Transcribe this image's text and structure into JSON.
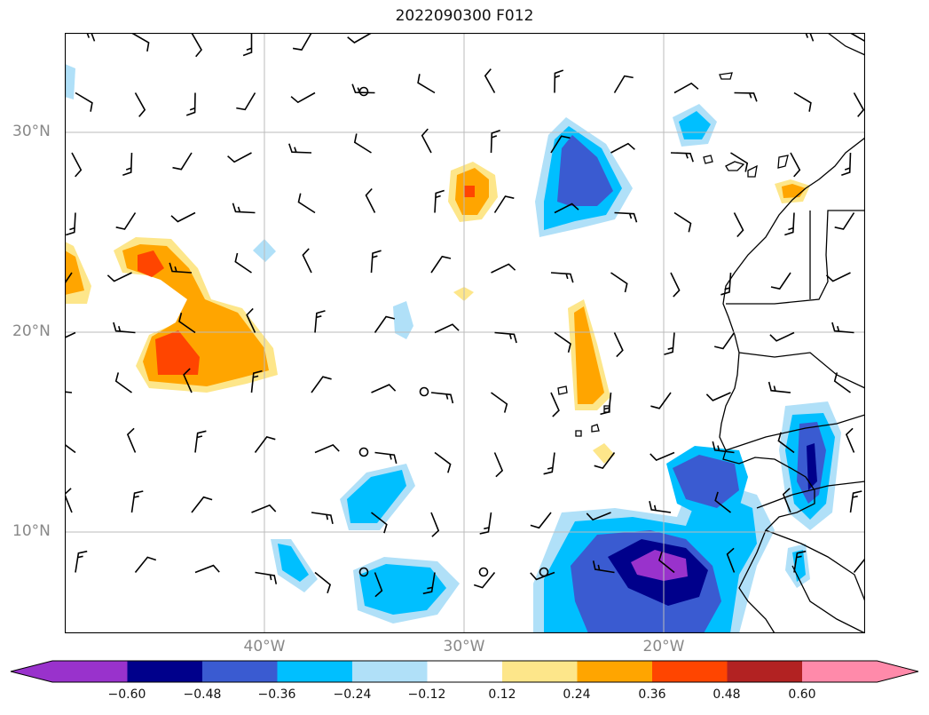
{
  "title": "2022090300 F012",
  "lat_labels": [
    "30°N",
    "20°N",
    "10°N"
  ],
  "lon_labels": [
    "40°W",
    "30°W",
    "20°W"
  ],
  "colorbar": {
    "ticks": [
      "−0.60",
      "−0.48",
      "−0.36",
      "−0.24",
      "−0.12",
      "0.12",
      "0.24",
      "0.36",
      "0.48",
      "0.60"
    ],
    "colors": [
      "#9932cc",
      "#00008b",
      "#3a5bd1",
      "#00bfff",
      "#b0e0f8",
      "#ffffff",
      "#fde68a",
      "#ffa500",
      "#ff4500",
      "#b22222",
      "#ff8aaa"
    ]
  },
  "map": {
    "extent_lon": [
      -50,
      -10
    ],
    "extent_lat": [
      5,
      35
    ],
    "gridlines": true,
    "wind_barbs": true
  }
}
